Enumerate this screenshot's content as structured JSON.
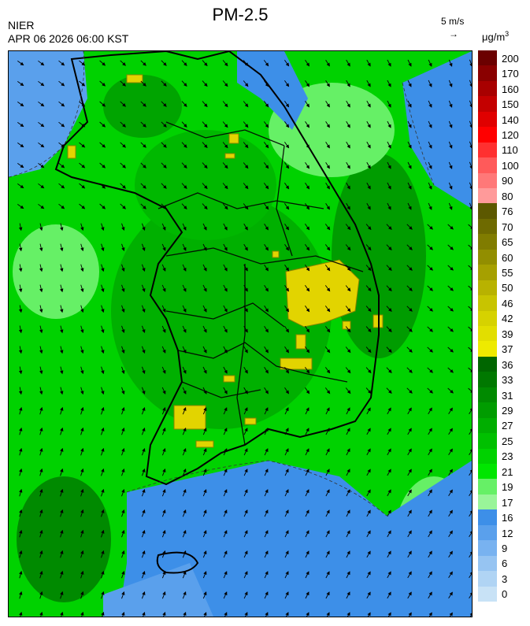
{
  "header": {
    "title": "PM-2.5",
    "org": "NIER",
    "timestamp": "APR 06 2026 06:00 KST",
    "wind_scale": "5 m/s",
    "wind_arrow": "→",
    "unit_base": "μg/m",
    "unit_exp": "3"
  },
  "legend": {
    "levels": [
      {
        "label": "200",
        "color": "#6b0000"
      },
      {
        "label": "170",
        "color": "#8a0000"
      },
      {
        "label": "160",
        "color": "#a80000"
      },
      {
        "label": "150",
        "color": "#c40000"
      },
      {
        "label": "140",
        "color": "#e00000"
      },
      {
        "label": "120",
        "color": "#ff0000"
      },
      {
        "label": "110",
        "color": "#ff3030"
      },
      {
        "label": "100",
        "color": "#ff5a5a"
      },
      {
        "label": "90",
        "color": "#ff7878"
      },
      {
        "label": "80",
        "color": "#ff9a9a"
      },
      {
        "label": "76",
        "color": "#5c5800"
      },
      {
        "label": "70",
        "color": "#6e6a00"
      },
      {
        "label": "65",
        "color": "#807c00"
      },
      {
        "label": "60",
        "color": "#928e00"
      },
      {
        "label": "55",
        "color": "#a6a000"
      },
      {
        "label": "50",
        "color": "#b8b200"
      },
      {
        "label": "46",
        "color": "#c8c400"
      },
      {
        "label": "42",
        "color": "#d6d200"
      },
      {
        "label": "39",
        "color": "#e2de00"
      },
      {
        "label": "37",
        "color": "#eeea00"
      },
      {
        "label": "36",
        "color": "#006600"
      },
      {
        "label": "33",
        "color": "#007800"
      },
      {
        "label": "31",
        "color": "#008a00"
      },
      {
        "label": "29",
        "color": "#009c00"
      },
      {
        "label": "27",
        "color": "#00ae00"
      },
      {
        "label": "25",
        "color": "#00c000"
      },
      {
        "label": "23",
        "color": "#00d200"
      },
      {
        "label": "21",
        "color": "#00e600"
      },
      {
        "label": "19",
        "color": "#66f066"
      },
      {
        "label": "17",
        "color": "#99f599"
      },
      {
        "label": "16",
        "color": "#3d8fe8"
      },
      {
        "label": "12",
        "color": "#5aa0ec"
      },
      {
        "label": "9",
        "color": "#78b2f0"
      },
      {
        "label": "6",
        "color": "#96c4f2"
      },
      {
        "label": "3",
        "color": "#b0d4f4"
      },
      {
        "label": "0",
        "color": "#c8e2f6"
      }
    ]
  },
  "map": {
    "region": "Korean Peninsula",
    "background_color": "#00d200",
    "sea_low_color": "#3d8fe8",
    "hotspot_color": "#e2d400"
  }
}
